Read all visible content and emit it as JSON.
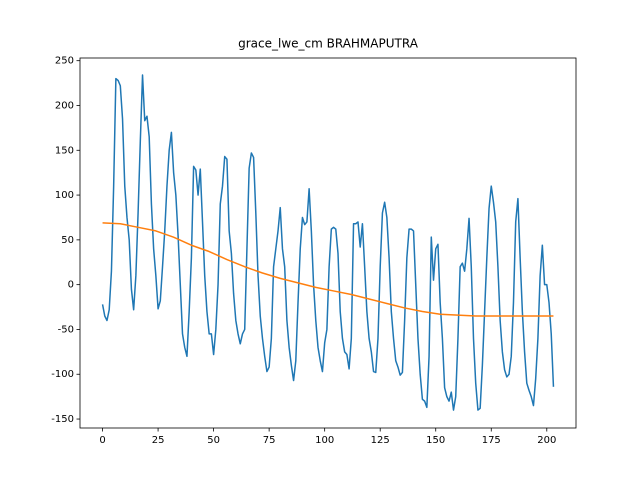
{
  "chart_data": {
    "type": "line",
    "title": "grace_lwe_cm BRAHMAPUTRA",
    "x": [
      0,
      1,
      2,
      3,
      4,
      5,
      6,
      7,
      8,
      9,
      10,
      11,
      12,
      13,
      14,
      15,
      16,
      17,
      18,
      19,
      20,
      21,
      22,
      23,
      24,
      25,
      26,
      27,
      28,
      29,
      30,
      31,
      32,
      33,
      34,
      35,
      36,
      37,
      38,
      39,
      40,
      41,
      42,
      43,
      44,
      45,
      46,
      47,
      48,
      49,
      50,
      51,
      52,
      53,
      54,
      55,
      56,
      57,
      58,
      59,
      60,
      61,
      62,
      63,
      64,
      65,
      66,
      67,
      68,
      69,
      70,
      71,
      72,
      73,
      74,
      75,
      76,
      77,
      78,
      79,
      80,
      81,
      82,
      83,
      84,
      85,
      86,
      87,
      88,
      89,
      90,
      91,
      92,
      93,
      94,
      95,
      96,
      97,
      98,
      99,
      100,
      101,
      102,
      103,
      104,
      105,
      106,
      107,
      108,
      109,
      110,
      111,
      112,
      113,
      114,
      115,
      116,
      117,
      118,
      119,
      120,
      121,
      122,
      123,
      124,
      125,
      126,
      127,
      128,
      129,
      130,
      131,
      132,
      133,
      134,
      135,
      136,
      137,
      138,
      139,
      140,
      141,
      142,
      143,
      144,
      145,
      146,
      147,
      148,
      149,
      150,
      151,
      152,
      153,
      154,
      155,
      156,
      157,
      158,
      159,
      160,
      161,
      162,
      163,
      164,
      165,
      166,
      167,
      168,
      169,
      170,
      171,
      172,
      173,
      174,
      175,
      176,
      177,
      178,
      179,
      180,
      181,
      182,
      183,
      184,
      185,
      186,
      187,
      188,
      189,
      190,
      191,
      192,
      193,
      194,
      195,
      196,
      197,
      198,
      199,
      200,
      201,
      202,
      203
    ],
    "series": [
      {
        "color": "#1f77b4",
        "values": [
          -22,
          -35,
          -40,
          -28,
          15,
          110,
          230,
          228,
          222,
          185,
          110,
          75,
          50,
          -5,
          -28,
          10,
          80,
          160,
          234,
          183,
          188,
          165,
          90,
          40,
          10,
          -27,
          -18,
          20,
          60,
          110,
          150,
          170,
          125,
          100,
          55,
          0,
          -55,
          -70,
          -80,
          -30,
          30,
          132,
          128,
          100,
          129,
          70,
          10,
          -30,
          -55,
          -55,
          -78,
          -50,
          0,
          90,
          110,
          143,
          140,
          60,
          35,
          -10,
          -40,
          -55,
          -66,
          -55,
          -50,
          40,
          130,
          147,
          142,
          80,
          10,
          -35,
          -60,
          -80,
          -97,
          -92,
          -60,
          20,
          40,
          60,
          86,
          40,
          20,
          -40,
          -70,
          -90,
          -107,
          -85,
          -20,
          40,
          75,
          67,
          70,
          107,
          60,
          0,
          -40,
          -70,
          -85,
          -97,
          -65,
          -50,
          20,
          62,
          64,
          62,
          35,
          -30,
          -60,
          -75,
          -78,
          -94,
          -60,
          68,
          68,
          70,
          42,
          68,
          20,
          -30,
          -60,
          -75,
          -97,
          -98,
          -60,
          20,
          80,
          92,
          75,
          30,
          -30,
          -60,
          -85,
          -92,
          -101,
          -98,
          -40,
          30,
          62,
          62,
          60,
          0,
          -60,
          -100,
          -128,
          -130,
          -137,
          -80,
          53,
          5,
          40,
          45,
          -20,
          -60,
          -115,
          -125,
          -130,
          -120,
          -140,
          -125,
          -60,
          20,
          24,
          15,
          40,
          74,
          20,
          -60,
          -110,
          -140,
          -138,
          -90,
          -30,
          30,
          85,
          110,
          92,
          70,
          20,
          -40,
          -75,
          -95,
          -103,
          -100,
          -80,
          -20,
          70,
          96,
          30,
          -30,
          -75,
          -110,
          -118,
          -125,
          -135,
          -105,
          -60,
          10,
          44,
          0,
          0,
          -20,
          -55,
          -114
        ]
      },
      {
        "color": "#ff7f0e",
        "x": [
          0,
          8,
          16,
          24,
          32,
          40,
          48,
          56,
          64,
          72,
          80,
          88,
          96,
          104,
          112,
          120,
          128,
          136,
          144,
          152,
          160,
          168,
          176,
          184,
          192,
          200,
          203
        ],
        "values": [
          69,
          68,
          64,
          60,
          53,
          44,
          37,
          28,
          20,
          13,
          7,
          2,
          -3,
          -7,
          -11,
          -16,
          -21,
          -26,
          -30,
          -33,
          -34,
          -35,
          -35,
          -35,
          -35,
          -35,
          -35
        ]
      }
    ],
    "xlim": [
      -10.15,
      213.15
    ],
    "xticks": [
      0,
      25,
      50,
      75,
      100,
      125,
      150,
      175,
      200
    ],
    "ylim": [
      -160,
      253
    ],
    "yticks": [
      -150,
      -100,
      -50,
      0,
      50,
      100,
      150,
      200,
      250
    ]
  }
}
